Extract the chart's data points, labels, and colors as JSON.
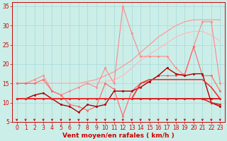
{
  "background_color": "#cceee8",
  "grid_color": "#aadddd",
  "xlabel": "Vent moyen/en rafales ( km/h )",
  "xlim": [
    -0.5,
    23.5
  ],
  "ylim": [
    5,
    36
  ],
  "yticks": [
    5,
    10,
    15,
    20,
    25,
    30,
    35
  ],
  "xticks": [
    0,
    1,
    2,
    3,
    4,
    5,
    6,
    7,
    8,
    9,
    10,
    11,
    12,
    13,
    14,
    15,
    16,
    17,
    18,
    19,
    20,
    21,
    22,
    23
  ],
  "lines": [
    {
      "x": [
        0,
        1,
        2,
        3,
        4,
        5,
        6,
        7,
        8,
        9,
        10,
        11,
        12,
        13,
        14,
        15,
        16,
        17,
        18,
        19,
        20,
        21,
        22,
        23
      ],
      "y": [
        15,
        15,
        15,
        15,
        15,
        15,
        15,
        15,
        15.5,
        16,
        17,
        18,
        19.5,
        21,
        23,
        25,
        27,
        28.5,
        30,
        31,
        31.5,
        31.5,
        31.5,
        31.5
      ],
      "color": "#ff9999",
      "lw": 0.9,
      "marker": null,
      "ms": 0
    },
    {
      "x": [
        0,
        1,
        2,
        3,
        4,
        5,
        6,
        7,
        8,
        9,
        10,
        11,
        12,
        13,
        14,
        15,
        16,
        17,
        18,
        19,
        20,
        21,
        22,
        23
      ],
      "y": [
        15,
        15,
        15,
        15,
        15,
        15,
        15,
        15,
        15,
        15,
        15.5,
        16,
        17,
        19,
        21,
        22.5,
        24,
        25.5,
        27,
        28,
        28.5,
        28.5,
        27.5,
        26
      ],
      "color": "#ffbbbb",
      "lw": 0.9,
      "marker": null,
      "ms": 0
    },
    {
      "x": [
        0,
        1,
        2,
        3,
        4,
        5,
        6,
        7,
        8,
        9,
        10,
        11,
        12,
        13,
        14,
        15,
        16,
        17,
        18,
        19,
        20,
        21,
        22,
        23
      ],
      "y": [
        15,
        15,
        16,
        17,
        13,
        12,
        13,
        14,
        15,
        14,
        19,
        15,
        35,
        28,
        22,
        22,
        22,
        22,
        19,
        17,
        24.5,
        31,
        31,
        15
      ],
      "color": "#ff8888",
      "lw": 0.8,
      "marker": "o",
      "ms": 1.8
    },
    {
      "x": [
        0,
        1,
        2,
        3,
        4,
        5,
        6,
        7,
        8,
        9,
        10,
        11,
        12,
        13,
        14,
        15,
        16,
        17,
        18,
        19,
        20,
        21,
        22,
        23
      ],
      "y": [
        15,
        15,
        15,
        16,
        13,
        12,
        9.5,
        9,
        8,
        9,
        15,
        13.5,
        6.5,
        13,
        15,
        15.5,
        17,
        17,
        17,
        17.5,
        24.5,
        17,
        17,
        13
      ],
      "color": "#ff6666",
      "lw": 0.8,
      "marker": "o",
      "ms": 1.8
    },
    {
      "x": [
        0,
        1,
        2,
        3,
        4,
        5,
        6,
        7,
        8,
        9,
        10,
        11,
        12,
        13,
        14,
        15,
        16,
        17,
        18,
        19,
        20,
        21,
        22,
        23
      ],
      "y": [
        11,
        11,
        11,
        11,
        11,
        11,
        11,
        11,
        11,
        11,
        11,
        11,
        11,
        11,
        11,
        11,
        11,
        11,
        11,
        11,
        11,
        11,
        11,
        11
      ],
      "color": "#cc0000",
      "lw": 1.2,
      "marker": "o",
      "ms": 1.8
    },
    {
      "x": [
        0,
        1,
        2,
        3,
        4,
        5,
        6,
        7,
        8,
        9,
        10,
        11,
        12,
        13,
        14,
        15,
        16,
        17,
        18,
        19,
        20,
        21,
        22,
        23
      ],
      "y": [
        11,
        11,
        12,
        12.5,
        11,
        9.5,
        9,
        7.5,
        9.5,
        9,
        9.5,
        13,
        13,
        13,
        14,
        15.5,
        17,
        19,
        17.5,
        17,
        17.5,
        17.5,
        10,
        9
      ],
      "color": "#aa0000",
      "lw": 1.0,
      "marker": "o",
      "ms": 1.8
    },
    {
      "x": [
        0,
        1,
        2,
        3,
        4,
        5,
        6,
        7,
        8,
        9,
        10,
        11,
        12,
        13,
        14,
        15,
        16,
        17,
        18,
        19,
        20,
        21,
        22,
        23
      ],
      "y": [
        11,
        11,
        11,
        11,
        11,
        11,
        11,
        11,
        11,
        11,
        11,
        11,
        11,
        11,
        11,
        11,
        11,
        11,
        11,
        11,
        11,
        11,
        10,
        9.5
      ],
      "color": "#dd2222",
      "lw": 1.2,
      "marker": "o",
      "ms": 1.8
    },
    {
      "x": [
        0,
        1,
        2,
        3,
        4,
        5,
        6,
        7,
        8,
        9,
        10,
        11,
        12,
        13,
        14,
        15,
        16,
        17,
        18,
        19,
        20,
        21,
        22,
        23
      ],
      "y": [
        11,
        11,
        11,
        11,
        11,
        11,
        11,
        11,
        11,
        11,
        11,
        11,
        11,
        11,
        15,
        16,
        16,
        16,
        16,
        16,
        16,
        16,
        14,
        11
      ],
      "color": "#ee3333",
      "lw": 1.2,
      "marker": null,
      "ms": 0
    }
  ],
  "arrow_color": "#cc0000",
  "axis_color": "#cc0000",
  "xlabel_fontsize": 6.5,
  "tick_fontsize": 5.5
}
